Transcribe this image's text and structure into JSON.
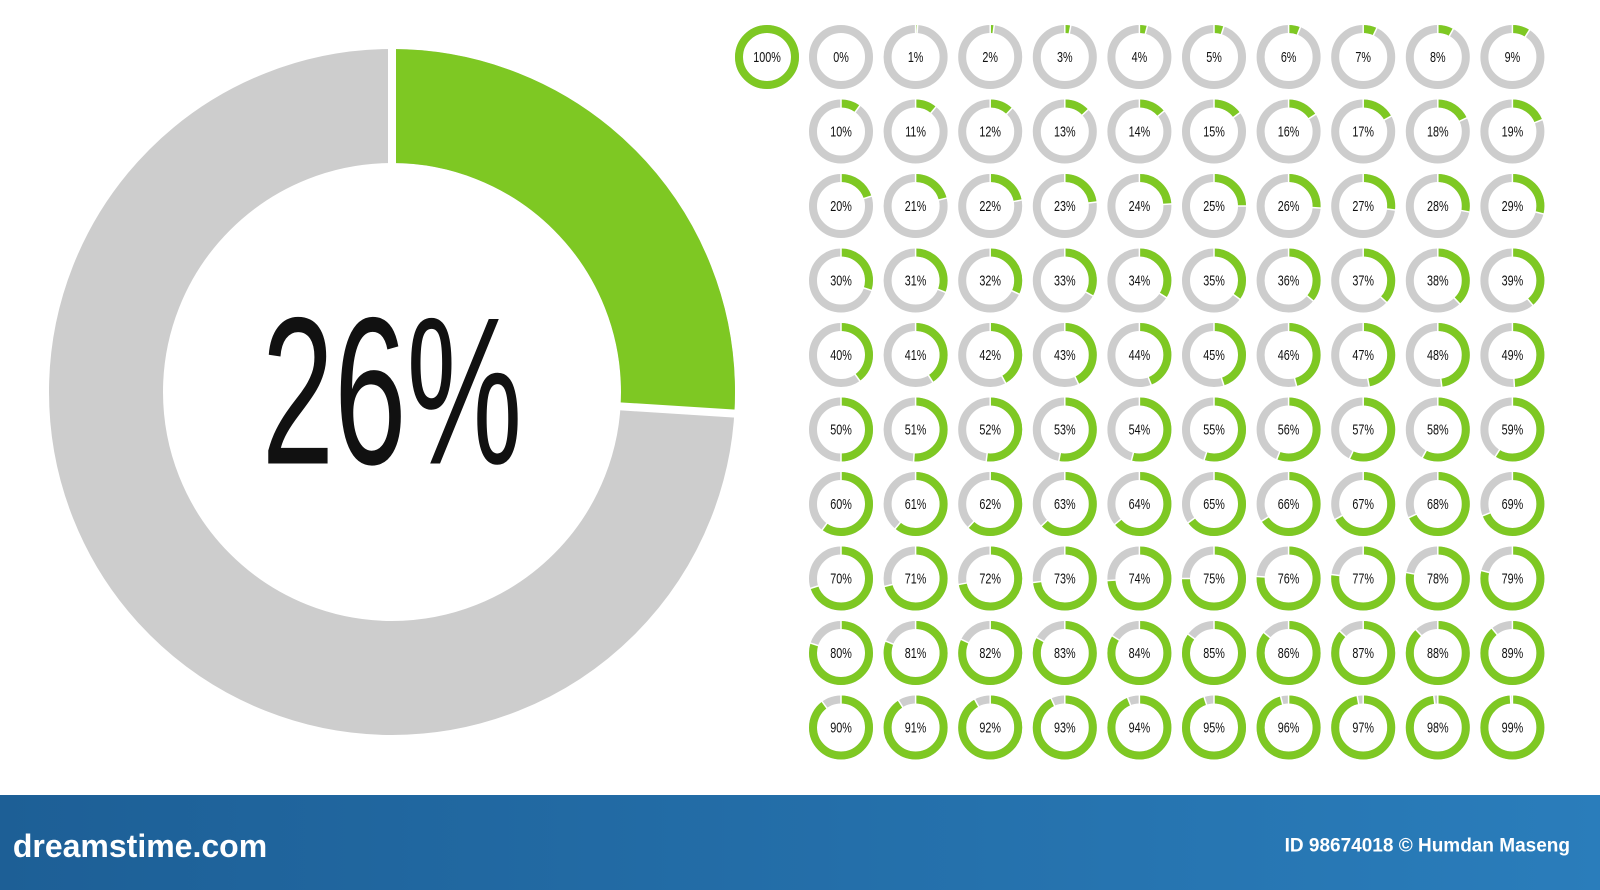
{
  "chart_data": [
    {
      "type": "donut",
      "ylim": [
        0,
        100
      ],
      "values": [
        26
      ],
      "value_labels": [
        "26%"
      ],
      "color": "#7ec823",
      "track_color": "#cdcdcd"
    },
    {
      "type": "donut-grid",
      "ylim": [
        0,
        100
      ],
      "color": "#7ec823",
      "track_color": "#cdcdcd",
      "values": [
        100,
        0,
        1,
        2,
        3,
        4,
        5,
        6,
        7,
        8,
        9,
        10,
        11,
        12,
        13,
        14,
        15,
        16,
        17,
        18,
        19,
        20,
        21,
        22,
        23,
        24,
        25,
        26,
        27,
        28,
        29,
        30,
        31,
        32,
        33,
        34,
        35,
        36,
        37,
        38,
        39,
        40,
        41,
        42,
        43,
        44,
        45,
        46,
        47,
        48,
        49,
        50,
        51,
        52,
        53,
        54,
        55,
        56,
        57,
        58,
        59,
        60,
        61,
        62,
        63,
        64,
        65,
        66,
        67,
        68,
        69,
        70,
        71,
        72,
        73,
        74,
        75,
        76,
        77,
        78,
        79,
        80,
        81,
        82,
        83,
        84,
        85,
        86,
        87,
        88,
        89,
        90,
        91,
        92,
        93,
        94,
        95,
        96,
        97,
        98,
        99
      ],
      "value_labels": [
        "100%",
        "0%",
        "1%",
        "2%",
        "3%",
        "4%",
        "5%",
        "6%",
        "7%",
        "8%",
        "9%",
        "10%",
        "11%",
        "12%",
        "13%",
        "14%",
        "15%",
        "16%",
        "17%",
        "18%",
        "19%",
        "20%",
        "21%",
        "22%",
        "23%",
        "24%",
        "25%",
        "26%",
        "27%",
        "28%",
        "29%",
        "30%",
        "31%",
        "32%",
        "33%",
        "34%",
        "35%",
        "36%",
        "37%",
        "38%",
        "39%",
        "40%",
        "41%",
        "42%",
        "43%",
        "44%",
        "45%",
        "46%",
        "47%",
        "48%",
        "49%",
        "50%",
        "51%",
        "52%",
        "53%",
        "54%",
        "55%",
        "56%",
        "57%",
        "58%",
        "59%",
        "60%",
        "61%",
        "62%",
        "63%",
        "64%",
        "65%",
        "66%",
        "67%",
        "68%",
        "69%",
        "70%",
        "71%",
        "72%",
        "73%",
        "74%",
        "75%",
        "76%",
        "77%",
        "78%",
        "79%",
        "80%",
        "81%",
        "82%",
        "83%",
        "84%",
        "85%",
        "86%",
        "87%",
        "88%",
        "89%",
        "90%",
        "91%",
        "92%",
        "93%",
        "94%",
        "95%",
        "96%",
        "97%",
        "98%",
        "99%"
      ]
    }
  ],
  "footer": {
    "brand": "dreamstime.com",
    "credit": "ID 98674018 © Humdan Maseng"
  }
}
